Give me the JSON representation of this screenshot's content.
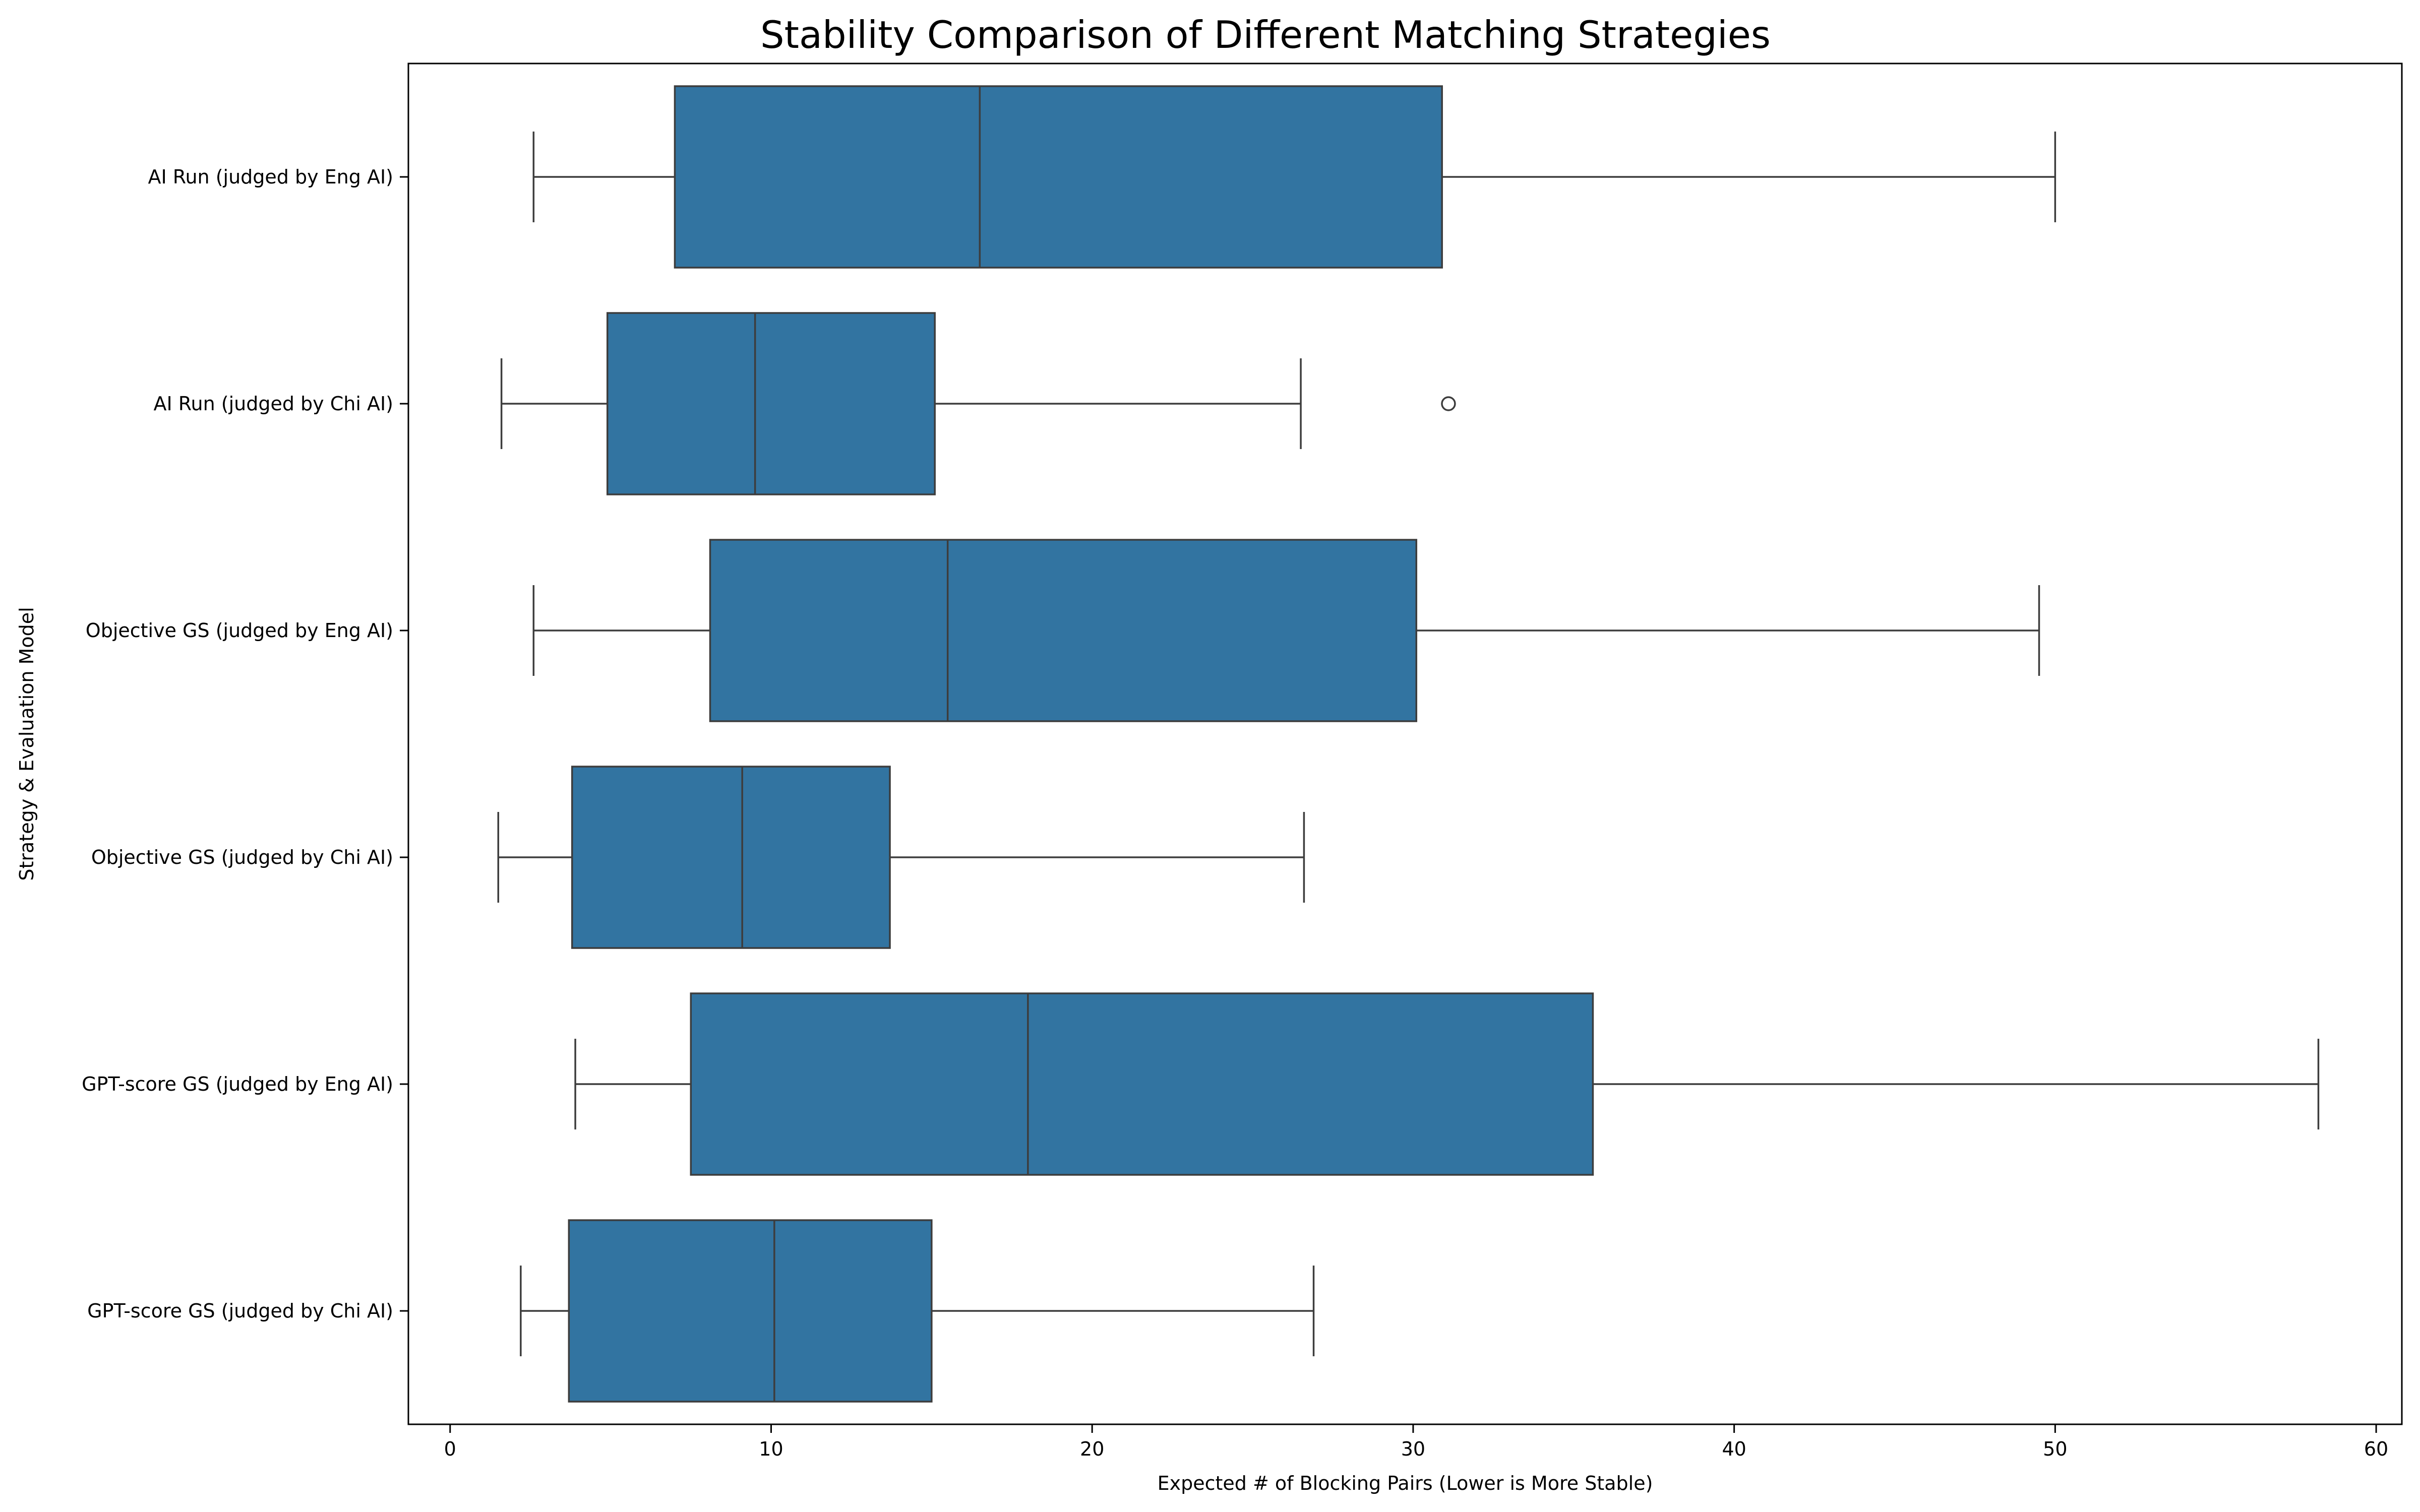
{
  "chart_data": {
    "type": "box",
    "orientation": "horizontal",
    "title": "Stability Comparison of Different Matching Strategies",
    "xlabel": "Expected # of Blocking Pairs (Lower is More Stable)",
    "ylabel": "Strategy & Evaluation Model",
    "xlim": [
      -1.3,
      60.8
    ],
    "xticks": [
      0,
      10,
      20,
      30,
      40,
      50,
      60
    ],
    "box_color": "#3274a1",
    "line_color": "#3d3d3d",
    "grid": false,
    "legend": false,
    "categories": [
      "AI Run (judged by Eng AI)",
      "AI Run (judged by Chi AI)",
      "Objective GS (judged by Eng AI)",
      "Objective GS (judged by Chi AI)",
      "GPT-score GS (judged by Eng AI)",
      "GPT-score GS (judged by Chi AI)"
    ],
    "boxes": [
      {
        "whisker_low": 2.6,
        "q1": 7.0,
        "median": 16.5,
        "q3": 30.9,
        "whisker_high": 50.0,
        "outliers": []
      },
      {
        "whisker_low": 1.6,
        "q1": 4.9,
        "median": 9.5,
        "q3": 15.1,
        "whisker_high": 26.5,
        "outliers": [
          31.1
        ]
      },
      {
        "whisker_low": 2.6,
        "q1": 8.1,
        "median": 15.5,
        "q3": 30.1,
        "whisker_high": 49.5,
        "outliers": []
      },
      {
        "whisker_low": 1.5,
        "q1": 3.8,
        "median": 9.1,
        "q3": 13.7,
        "whisker_high": 26.6,
        "outliers": []
      },
      {
        "whisker_low": 3.9,
        "q1": 7.5,
        "median": 18.0,
        "q3": 35.6,
        "whisker_high": 58.2,
        "outliers": []
      },
      {
        "whisker_low": 2.2,
        "q1": 3.7,
        "median": 10.1,
        "q3": 15.0,
        "whisker_high": 26.9,
        "outliers": []
      }
    ]
  }
}
